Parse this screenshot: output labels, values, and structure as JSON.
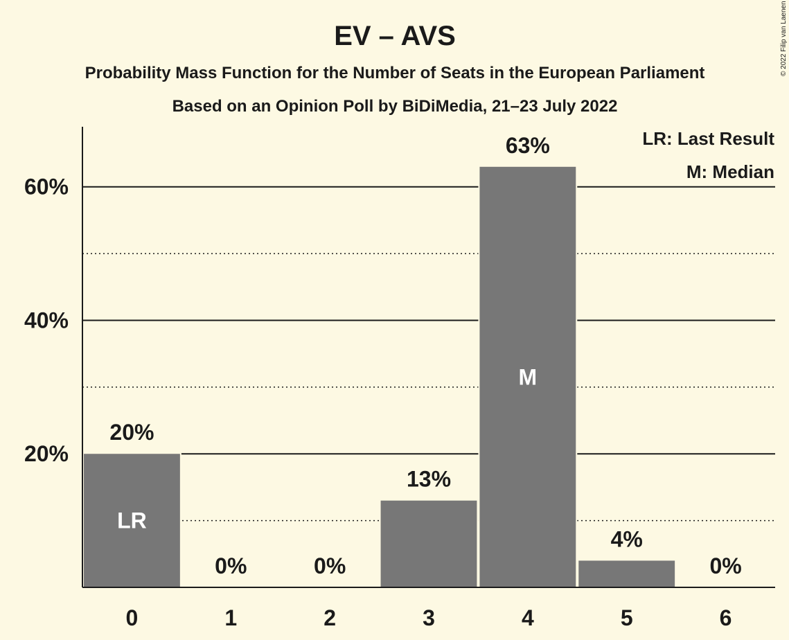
{
  "chart_data": {
    "type": "bar",
    "title": "EV – AVS",
    "subtitle": "Probability Mass Function for the Number of Seats in the European Parliament",
    "subtitle2": "Based on an Opinion Poll by BiDiMedia, 21–23 July 2022",
    "categories": [
      "0",
      "1",
      "2",
      "3",
      "4",
      "5",
      "6"
    ],
    "values": [
      20,
      0,
      0,
      13,
      63,
      4,
      0
    ],
    "value_labels": [
      "20%",
      "0%",
      "0%",
      "13%",
      "63%",
      "4%",
      "0%"
    ],
    "bar_annotations": [
      {
        "category": "0",
        "text": "LR"
      },
      {
        "category": "4",
        "text": "M"
      }
    ],
    "ylim": [
      0,
      69
    ],
    "y_ticks": [
      {
        "value": 20,
        "label": "20%"
      },
      {
        "value": 40,
        "label": "40%"
      },
      {
        "value": 60,
        "label": "60%"
      }
    ],
    "minor_gridlines": [
      10,
      30,
      50
    ],
    "legend": [
      "LR: Last Result",
      "M: Median"
    ],
    "legend_position": "top-right",
    "copyright": "© 2022 Filip van Laenen",
    "colors": {
      "background": "#fdf9e3",
      "bar": "#777777",
      "text": "#1a1a1a",
      "inbar_text": "#ffffff"
    }
  }
}
